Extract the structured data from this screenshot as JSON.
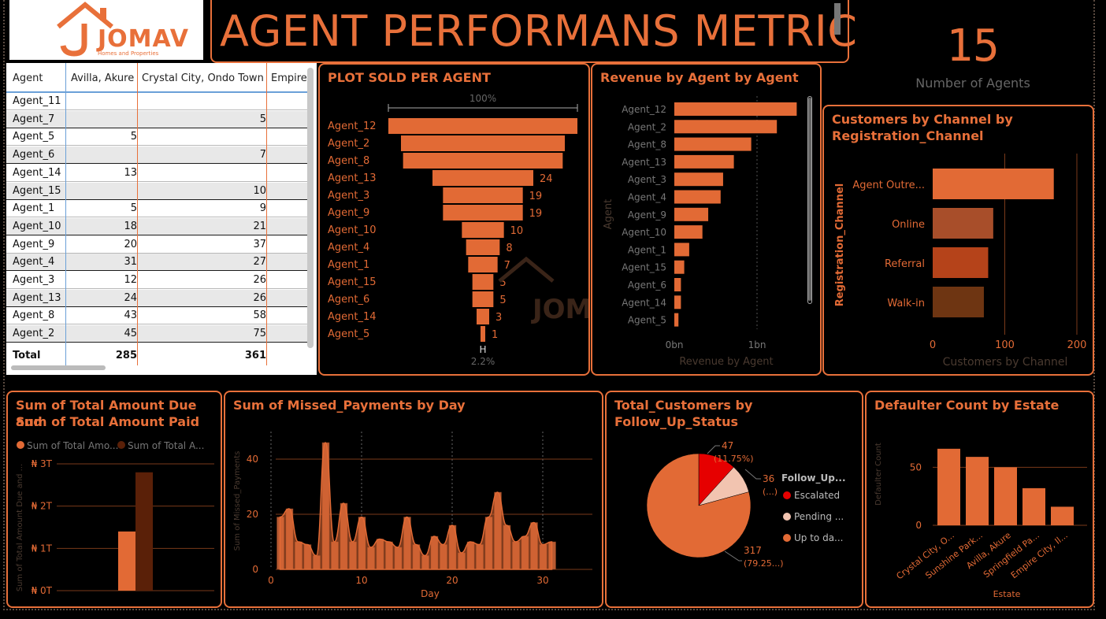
{
  "header": {
    "logo_text": "JOMAV",
    "logo_sub": "Homes and Properties",
    "title": "AGENT PERFORMANS METRIC"
  },
  "kpi": {
    "value": "15",
    "label": "Number of Agents"
  },
  "table": {
    "columns": [
      "Agent",
      "Avilla, Akure",
      "Crystal City, Ondo Town",
      "Empire"
    ],
    "rows": [
      {
        "agent": "Agent_11",
        "avilla": "",
        "crystal": ""
      },
      {
        "agent": "Agent_7",
        "avilla": "",
        "crystal": "5"
      },
      {
        "agent": "Agent_5",
        "avilla": "5",
        "crystal": ""
      },
      {
        "agent": "Agent_6",
        "avilla": "",
        "crystal": "7"
      },
      {
        "agent": "Agent_14",
        "avilla": "13",
        "crystal": ""
      },
      {
        "agent": "Agent_15",
        "avilla": "",
        "crystal": "10"
      },
      {
        "agent": "Agent_1",
        "avilla": "5",
        "crystal": "9"
      },
      {
        "agent": "Agent_10",
        "avilla": "18",
        "crystal": "21"
      },
      {
        "agent": "Agent_9",
        "avilla": "20",
        "crystal": "37"
      },
      {
        "agent": "Agent_4",
        "avilla": "31",
        "crystal": "27"
      },
      {
        "agent": "Agent_3",
        "avilla": "12",
        "crystal": "26"
      },
      {
        "agent": "Agent_13",
        "avilla": "24",
        "crystal": "26"
      },
      {
        "agent": "Agent_8",
        "avilla": "43",
        "crystal": "58"
      },
      {
        "agent": "Agent_2",
        "avilla": "45",
        "crystal": "75"
      }
    ],
    "total": {
      "label": "Total",
      "avilla": "285",
      "crystal": "361"
    }
  },
  "charts": {
    "funnel": {
      "title": "PLOT SOLD PER AGENT",
      "top_pct": "100%",
      "bottom_pct": "2.2%",
      "bottom_marker": "H"
    },
    "revenue": {
      "title": "Revenue by Agent by Agent"
    },
    "channel": {
      "title_line1": "Customers by Channel by",
      "title_line2": "Registration_Channel"
    },
    "amount": {
      "title_line1": "Sum of Total Amount Due and",
      "title_line2": "Sum of Total Amount Paid"
    },
    "missed": {
      "title": "Sum of Missed_Payments by Day"
    },
    "follow": {
      "title": "Total_Customers by Follow_Up_Status"
    },
    "defaulter": {
      "title": "Defaulter Count by Estate"
    }
  },
  "chart_data": [
    {
      "type": "bar",
      "name": "funnel",
      "categories": [
        "Agent_12",
        "Agent_2",
        "Agent_8",
        "Agent_13",
        "Agent_3",
        "Agent_9",
        "Agent_10",
        "Agent_4",
        "Agent_1",
        "Agent_15",
        "Agent_6",
        "Agent_14",
        "Agent_5"
      ],
      "values": [
        45,
        39,
        38,
        24,
        19,
        19,
        10,
        8,
        7,
        5,
        5,
        3,
        1
      ],
      "labels": [
        "",
        "",
        "",
        "24",
        "19",
        "19",
        "10",
        "8",
        "7",
        "5",
        "5",
        "3",
        "1"
      ]
    },
    {
      "type": "bar",
      "name": "revenue",
      "title": "Revenue by Agent by Agent",
      "xlabel": "Revenue by Agent",
      "ylabel": "Agent",
      "categories": [
        "Agent_12",
        "Agent_2",
        "Agent_8",
        "Agent_13",
        "Agent_3",
        "Agent_4",
        "Agent_9",
        "Agent_10",
        "Agent_1",
        "Agent_15",
        "Agent_6",
        "Agent_14",
        "Agent_5"
      ],
      "values": [
        1.48,
        1.24,
        0.93,
        0.72,
        0.59,
        0.56,
        0.41,
        0.34,
        0.18,
        0.12,
        0.08,
        0.08,
        0.05
      ],
      "xticks": [
        "0bn",
        "1bn"
      ],
      "xlim": [
        0,
        1.6
      ]
    },
    {
      "type": "bar",
      "name": "channel",
      "xlabel": "Customers by Channel",
      "ylabel": "Registration_Channel",
      "categories": [
        "Agent Outre...",
        "Online",
        "Referral",
        "Walk-in"
      ],
      "values": [
        168,
        84,
        77,
        71
      ],
      "colors": [
        "#e26a35",
        "#a84e2a",
        "#b5431a",
        "#6e3512"
      ],
      "xticks": [
        "0",
        "100",
        "200"
      ],
      "xlim": [
        0,
        200
      ]
    },
    {
      "type": "bar",
      "name": "amount",
      "ylabel": "Sum of Total Amount Due and ...",
      "legend": [
        "Sum of Total Amo...",
        "Sum of Total A..."
      ],
      "legend_colors": [
        "#e26a35",
        "#5a2008"
      ],
      "series": [
        {
          "name": "Sum of Total Amo...",
          "values": [
            1.4
          ]
        },
        {
          "name": "Sum of Total A...",
          "values": [
            2.8
          ]
        }
      ],
      "yticks": [
        "₦ 3T",
        "₦ 2T",
        "₦ 1T",
        "₦ 0T"
      ],
      "ylim": [
        0,
        3
      ]
    },
    {
      "type": "area",
      "name": "missed",
      "xlabel": "Day",
      "ylabel": "Sum of Missed_Payments",
      "x": [
        1,
        2,
        3,
        4,
        5,
        6,
        7,
        8,
        9,
        10,
        11,
        12,
        13,
        14,
        15,
        16,
        17,
        18,
        19,
        20,
        21,
        22,
        23,
        24,
        25,
        26,
        27,
        28,
        29,
        30,
        31
      ],
      "values": [
        19,
        22,
        10,
        9,
        5,
        46,
        10,
        24,
        10,
        19,
        8,
        11,
        10,
        8,
        19,
        9,
        5,
        12,
        9,
        16,
        6,
        10,
        9,
        19,
        28,
        16,
        10,
        12,
        17,
        9,
        10
      ],
      "yticks": [
        "0",
        "20",
        "40"
      ],
      "xticks": [
        "0",
        "10",
        "20",
        "30"
      ],
      "ylim": [
        0,
        48
      ]
    },
    {
      "type": "pie",
      "name": "follow",
      "legend_title": "Follow_Up...",
      "categories": [
        "Escalated",
        "Pending ...",
        "Up to da..."
      ],
      "values": [
        47,
        36,
        317
      ],
      "colors": [
        "#e60000",
        "#f2c4b0",
        "#e26a35"
      ],
      "labels": [
        "47",
        "36",
        "317"
      ],
      "sublabels": [
        "(11.75%)",
        "(...)",
        "(79.25...)"
      ]
    },
    {
      "type": "bar",
      "name": "defaulter",
      "xlabel": "Estate",
      "ylabel": "Defaulter Count",
      "categories": [
        "Crystal City, O...",
        "Sunshine Park...",
        "Avilla, Akure",
        "Springfield Pa...",
        "Empire City, Il..."
      ],
      "values": [
        66,
        59,
        50,
        32,
        16
      ],
      "yticks": [
        "0",
        "50"
      ],
      "ylim": [
        0,
        72
      ]
    }
  ]
}
